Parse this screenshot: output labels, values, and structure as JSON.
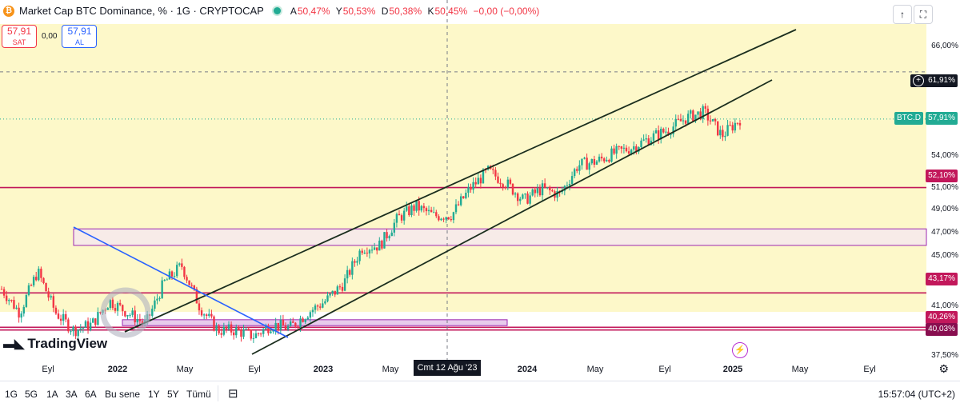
{
  "legend": {
    "coin_icon": "bitcoin-icon",
    "title": "Market Cap BTC Dominance, % · 1G · CRYPTOCAP",
    "o_key": "A",
    "o_val": "50,47%",
    "h_key": "Y",
    "h_val": "50,53%",
    "l_key": "D",
    "l_val": "50,38%",
    "c_key": "K",
    "c_val": "50,45%",
    "change": "−0,00 (−0,00%)"
  },
  "trade": {
    "sell_price": "57,91",
    "sell_label": "SAT",
    "spread": "0,00",
    "buy_price": "57,91",
    "buy_label": "AL"
  },
  "top_buttons": {
    "arrow_up_icon": "arrow-up-icon",
    "fullscreen_icon": "fullscreen-icon"
  },
  "price_axis": [
    "66,00%",
    "54,00%",
    "51,00%",
    "49,00%",
    "47,00%",
    "45,00%",
    "41,00%",
    "37,50%"
  ],
  "price_labels": {
    "crosshair": "61,91%",
    "symbol": "BTC.D",
    "last": "57,91%",
    "level1": "52,10%",
    "level2": "43,17%",
    "level3": "40,26%",
    "level4": "40,03%"
  },
  "time_axis": [
    "Eyl",
    "2022",
    "May",
    "Eyl",
    "2023",
    "May",
    "2024",
    "May",
    "Eyl",
    "2025",
    "May",
    "Eyl"
  ],
  "crosshair_date": "Cmt 12 Ağu '23",
  "logo_text": "TradingView",
  "timeframes": [
    "1G",
    "5G",
    "1A",
    "3A",
    "6A",
    "Bu sene",
    "1Y",
    "5Y",
    "Tümü"
  ],
  "clock": "15:57:04 (UTC+2)",
  "colors": {
    "up": "#22ab94",
    "down": "#f23645",
    "band": "#fdf8c9",
    "level": "#c2185b",
    "zone": "#9c27b0",
    "trend": "#1b2e1e",
    "blue": "#2962ff"
  },
  "chart_data": {
    "type": "candlestick",
    "title": "Market Cap BTC Dominance, % · 1G · CRYPTOCAP",
    "x": [
      "2021-08",
      "2021-09",
      "2021-10",
      "2021-11",
      "2021-12",
      "2022-01",
      "2022-02",
      "2022-03",
      "2022-04",
      "2022-05",
      "2022-06",
      "2022-07",
      "2022-08",
      "2022-09",
      "2022-10",
      "2022-11",
      "2022-12",
      "2023-01",
      "2023-02",
      "2023-03",
      "2023-04",
      "2023-05",
      "2023-06",
      "2023-07",
      "2023-08",
      "2023-09",
      "2023-10",
      "2023-11",
      "2023-12",
      "2024-01",
      "2024-02",
      "2024-03",
      "2024-04",
      "2024-05",
      "2024-06",
      "2024-07",
      "2024-08",
      "2024-09",
      "2024-10",
      "2024-11",
      "2024-12",
      "2025-01"
    ],
    "y": [
      43.5,
      41.5,
      45.0,
      41.5,
      40.0,
      40.5,
      42.5,
      41.5,
      40.5,
      44.0,
      45.5,
      42.0,
      40.0,
      40.0,
      39.5,
      40.5,
      40.2,
      41.5,
      42.5,
      44.0,
      47.0,
      47.2,
      49.5,
      50.5,
      49.7,
      49.8,
      52.0,
      53.5,
      52.5,
      51.0,
      52.0,
      51.5,
      54.0,
      54.3,
      55.0,
      55.5,
      56.3,
      57.0,
      58.0,
      58.5,
      56.5,
      57.91
    ],
    "ylim": [
      37.5,
      68
    ],
    "last_value": 57.91,
    "horizontal_levels": [
      52.1,
      43.17,
      40.26,
      40.03
    ],
    "zones": [
      [
        47.2,
        48.6
      ],
      [
        40.4,
        40.9
      ]
    ],
    "grid": false
  }
}
